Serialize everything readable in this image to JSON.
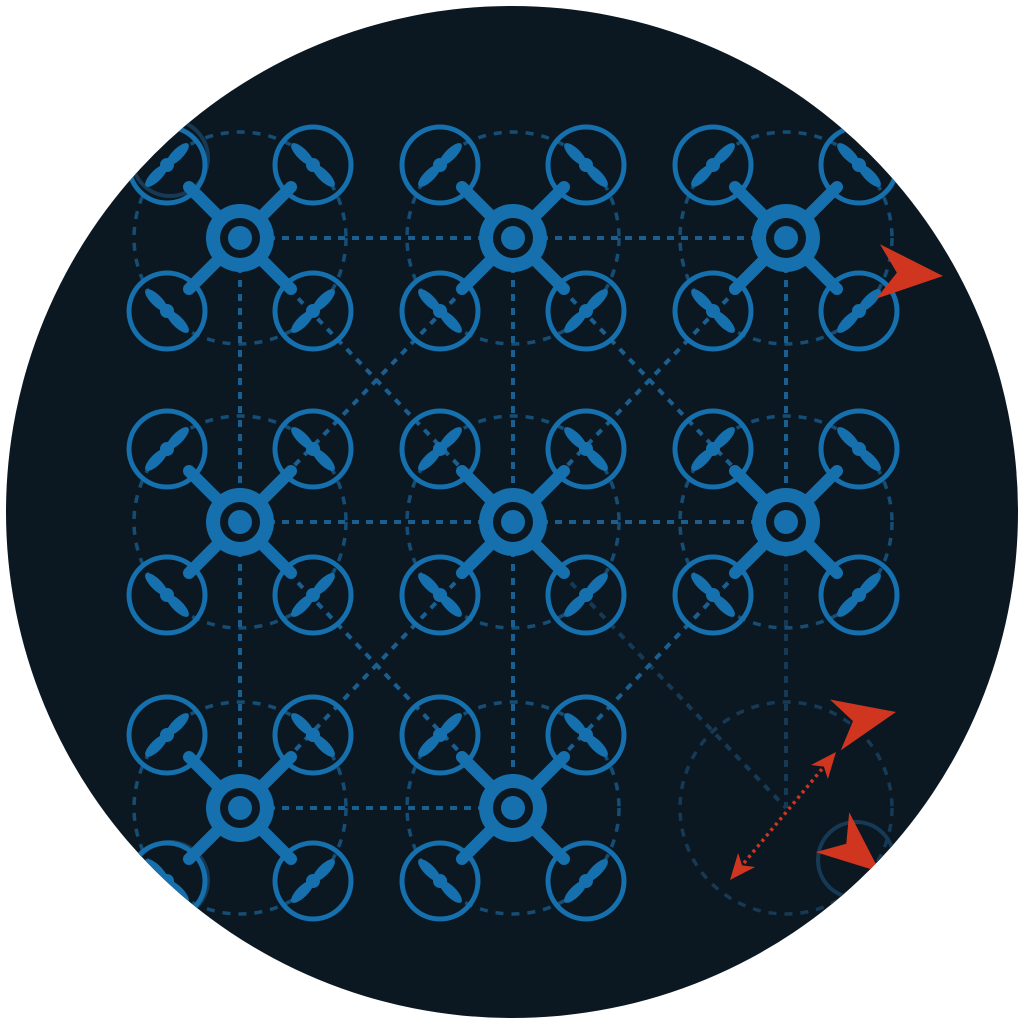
{
  "colors": {
    "background": "#ffffff",
    "disk": "#0b1822",
    "drone": "#1670ad",
    "hub": "#0b1822",
    "link": "#1b5f91",
    "link_faint": "#163a55",
    "threat": "#d0351f"
  },
  "swarm": {
    "rows": 3,
    "columns": 3,
    "drones": [
      {
        "row": 0,
        "col": 0,
        "icon": "quadcopter-icon"
      },
      {
        "row": 0,
        "col": 1,
        "icon": "quadcopter-icon"
      },
      {
        "row": 0,
        "col": 2,
        "icon": "quadcopter-icon"
      },
      {
        "row": 1,
        "col": 0,
        "icon": "quadcopter-icon"
      },
      {
        "row": 1,
        "col": 1,
        "icon": "quadcopter-icon"
      },
      {
        "row": 1,
        "col": 2,
        "icon": "quadcopter-icon"
      },
      {
        "row": 2,
        "col": 0,
        "icon": "quadcopter-icon"
      },
      {
        "row": 2,
        "col": 1,
        "icon": "quadcopter-icon"
      }
    ],
    "empty_slot": {
      "row": 2,
      "col": 2
    },
    "intruders": [
      "arrowhead-icon",
      "arrowhead-icon",
      "arrowhead-icon"
    ],
    "intercept_vector": "double-headed-dotted-arrow-icon"
  }
}
